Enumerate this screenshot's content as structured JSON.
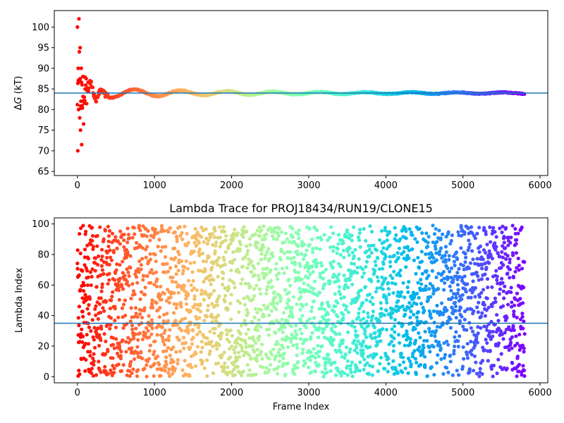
{
  "chart_data": [
    {
      "type": "scatter",
      "title": "",
      "xlabel": "",
      "ylabel": "ΔG (kT)",
      "ylabel_parts": {
        "symbol": "Δ",
        "variable": "G",
        "unit": " (kT)"
      },
      "xlim": [
        -300,
        6100
      ],
      "ylim": [
        64,
        104
      ],
      "xticks": [
        0,
        1000,
        2000,
        3000,
        4000,
        5000,
        6000
      ],
      "yticks": [
        65,
        70,
        75,
        80,
        85,
        90,
        95,
        100
      ],
      "hline": {
        "y": 84,
        "color": "#1f77b4"
      },
      "colormap": "rainbow",
      "color_direction": "reversed-by-frame",
      "n_frames": 5800,
      "series": [
        {
          "name": "",
          "description_points": [
            {
              "x": 0,
              "y": 100
            },
            {
              "x": 5,
              "y": 70
            },
            {
              "x": 10,
              "y": 90
            },
            {
              "x": 15,
              "y": 80
            },
            {
              "x": 20,
              "y": 102
            },
            {
              "x": 25,
              "y": 94
            },
            {
              "x": 30,
              "y": 78
            },
            {
              "x": 35,
              "y": 95
            },
            {
              "x": 40,
              "y": 75
            },
            {
              "x": 45,
              "y": 82
            },
            {
              "x": 50,
              "y": 90
            },
            {
              "x": 55,
              "y": 71.5
            },
            {
              "x": 60,
              "y": 86
            },
            {
              "x": 70,
              "y": 88
            },
            {
              "x": 80,
              "y": 76.5
            },
            {
              "x": 90,
              "y": 83
            },
            {
              "x": 100,
              "y": 85
            }
          ],
          "settling": {
            "final_value": 84,
            "initial_spread": 14,
            "stabilize_frame": 400
          }
        }
      ]
    },
    {
      "type": "scatter",
      "title": "Lambda Trace for PROJ18434/RUN19/CLONE15",
      "xlabel": "Frame Index",
      "ylabel": "Lambda Index",
      "xlim": [
        -300,
        6100
      ],
      "ylim": [
        -4,
        104
      ],
      "xticks": [
        0,
        1000,
        2000,
        3000,
        4000,
        5000,
        6000
      ],
      "yticks": [
        0,
        20,
        40,
        60,
        80,
        100
      ],
      "hline": {
        "y": 35,
        "color": "#1f77b4"
      },
      "colormap": "rainbow",
      "color_direction": "reversed-by-frame",
      "n_frames": 5800,
      "value_range": [
        0,
        99
      ],
      "series": [
        {
          "name": "",
          "distribution": "uniform over 0-99 for each frame"
        }
      ]
    }
  ]
}
